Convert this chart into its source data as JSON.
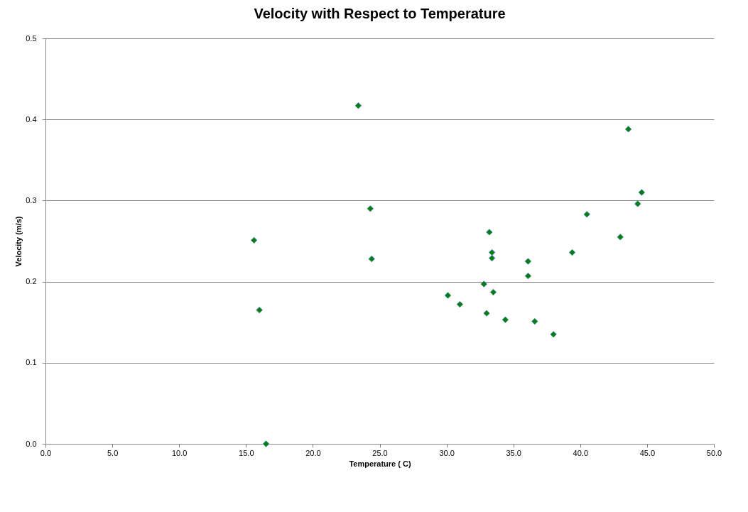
{
  "chart_data": {
    "type": "scatter",
    "title": "Velocity with Respect to Temperature",
    "xlabel": "Temperature ( C)",
    "ylabel": "Velocity (m/s)",
    "x": [
      15.6,
      16.0,
      16.5,
      23.4,
      24.3,
      24.4,
      30.1,
      31.0,
      32.8,
      33.0,
      33.2,
      33.4,
      33.4,
      33.5,
      34.4,
      36.1,
      36.1,
      36.6,
      38.0,
      39.4,
      40.5,
      43.0,
      43.6,
      44.3,
      44.6
    ],
    "series": [
      {
        "color": "#008000",
        "values": [
          0.251,
          0.165,
          0.0,
          0.417,
          0.29,
          0.228,
          0.183,
          0.172,
          0.197,
          0.161,
          0.261,
          0.236,
          0.229,
          0.187,
          0.153,
          0.225,
          0.207,
          0.151,
          0.135,
          0.236,
          0.283,
          0.255,
          0.388,
          0.296,
          0.31
        ]
      }
    ],
    "xlim": [
      0,
      50
    ],
    "xticks": [
      {
        "value": 0,
        "label": "0.0"
      },
      {
        "value": 5,
        "label": "5.0"
      },
      {
        "value": 10,
        "label": "10.0"
      },
      {
        "value": 15,
        "label": "15.0"
      },
      {
        "value": 20,
        "label": "20.0"
      },
      {
        "value": 25,
        "label": "25.0"
      },
      {
        "value": 30,
        "label": "30.0"
      },
      {
        "value": 35,
        "label": "35.0"
      },
      {
        "value": 40,
        "label": "40.0"
      },
      {
        "value": 45,
        "label": "45.0"
      },
      {
        "value": 50,
        "label": "50.0"
      }
    ],
    "ylim": [
      0,
      0.5
    ],
    "yticks": [
      {
        "value": 0,
        "label": "0.0"
      },
      0.1,
      0.2,
      0.3,
      0.4,
      0.5
    ],
    "grid": "y",
    "marker": "diamond"
  }
}
